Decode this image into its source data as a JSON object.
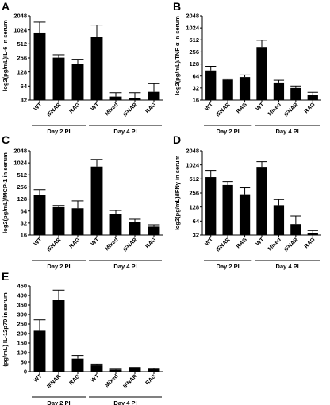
{
  "figure": {
    "panels": [
      {
        "letter": "A"
      },
      {
        "letter": "B"
      },
      {
        "letter": "C"
      },
      {
        "letter": "D"
      },
      {
        "letter": "E"
      }
    ]
  },
  "chart_data": [
    {
      "type": "bar",
      "panel": "A",
      "scale": "log2",
      "ylabel": "log2(pg/mL)IL-6 in serum",
      "ylim": [
        32,
        2048
      ],
      "yticks": [
        "2048",
        "1024",
        "512",
        "256",
        "128",
        "64",
        "32"
      ],
      "tick_values": [
        2048,
        1024,
        512,
        256,
        128,
        64,
        32
      ],
      "categories": [
        "WT",
        "IFNAR",
        "RAG",
        "WT",
        "Mixed",
        "IFNAR",
        "RAG"
      ],
      "groups": [
        {
          "label": "Day 2 PI",
          "from": 0,
          "to": 2
        },
        {
          "label": "Day 4 PI",
          "from": 3,
          "to": 6
        }
      ],
      "values": [
        900,
        260,
        190,
        720,
        38,
        36,
        48
      ],
      "errors": [
        1500,
        300,
        240,
        1300,
        46,
        46,
        72
      ]
    },
    {
      "type": "bar",
      "panel": "B",
      "scale": "log2",
      "ylabel": "log2(pg/mL)/TNF α in serum",
      "ylim": [
        16,
        2048
      ],
      "yticks": [
        "2048",
        "1024",
        "512",
        "256",
        "128",
        "64",
        "32",
        "16"
      ],
      "tick_values": [
        2048,
        1024,
        512,
        256,
        128,
        64,
        32,
        16
      ],
      "categories": [
        "WT",
        "IFNAR",
        "RAG",
        "WT",
        "Mixed",
        "IFNAR",
        "RAG"
      ],
      "groups": [
        {
          "label": "Day 2 PI",
          "from": 0,
          "to": 2
        },
        {
          "label": "Day 4 PI",
          "from": 3,
          "to": 6
        }
      ],
      "values": [
        88,
        52,
        60,
        340,
        44,
        32,
        22
      ],
      "errors": [
        112,
        54,
        68,
        500,
        50,
        36,
        25
      ]
    },
    {
      "type": "bar",
      "panel": "C",
      "scale": "log2",
      "ylabel": "log2(pg/mL)/MCP-1 in serum",
      "ylim": [
        16,
        2048
      ],
      "yticks": [
        "2048",
        "1024",
        "512",
        "256",
        "128",
        "64",
        "32",
        "16"
      ],
      "tick_values": [
        2048,
        1024,
        512,
        256,
        128,
        64,
        32,
        16
      ],
      "categories": [
        "WT",
        "IFNAR",
        "RAG",
        "WT",
        "Mixed",
        "IFNAR",
        "RAG"
      ],
      "groups": [
        {
          "label": "Day 2 PI",
          "from": 0,
          "to": 2
        },
        {
          "label": "Day 4 PI",
          "from": 3,
          "to": 6
        }
      ],
      "values": [
        160,
        80,
        75,
        830,
        55,
        34,
        26
      ],
      "errors": [
        220,
        88,
        115,
        1250,
        66,
        40,
        29
      ]
    },
    {
      "type": "bar",
      "panel": "D",
      "scale": "log2",
      "ylabel": "log2(pg/mL)/IFNγ in serum",
      "ylim": [
        32,
        2048
      ],
      "yticks": [
        "2048",
        "1024",
        "512",
        "256",
        "128",
        "64",
        "32"
      ],
      "tick_values": [
        2048,
        1024,
        512,
        256,
        128,
        64,
        32
      ],
      "categories": [
        "WT",
        "IFNAR",
        "RAG",
        "WT",
        "Mixed",
        "IFNAR",
        "RAG"
      ],
      "groups": [
        {
          "label": "Day 2 PI",
          "from": 0,
          "to": 2
        },
        {
          "label": "Day 4 PI",
          "from": 3,
          "to": 6
        }
      ],
      "values": [
        560,
        380,
        240,
        930,
        140,
        55,
        36
      ],
      "errors": [
        780,
        450,
        330,
        1200,
        185,
        82,
        40
      ]
    },
    {
      "type": "bar",
      "panel": "E",
      "scale": "linear",
      "ylabel": "(pg/mL) IL-12p70 in serum",
      "ylim": [
        0,
        450
      ],
      "yticks": [
        "450",
        "400",
        "350",
        "300",
        "250",
        "200",
        "150",
        "100",
        "50",
        "0"
      ],
      "tick_values": [
        450,
        400,
        350,
        300,
        250,
        200,
        150,
        100,
        50,
        0
      ],
      "categories": [
        "WT",
        "IFNAR",
        "RAG",
        "WT",
        "Mixed",
        "IFNAR",
        "RAG"
      ],
      "groups": [
        {
          "label": "Day 2 PI",
          "from": 0,
          "to": 2
        },
        {
          "label": "Day 4 PI",
          "from": 3,
          "to": 6
        }
      ],
      "values": [
        215,
        375,
        68,
        33,
        10,
        18,
        15
      ],
      "errors": [
        272,
        428,
        85,
        40,
        13,
        22,
        18
      ]
    }
  ]
}
